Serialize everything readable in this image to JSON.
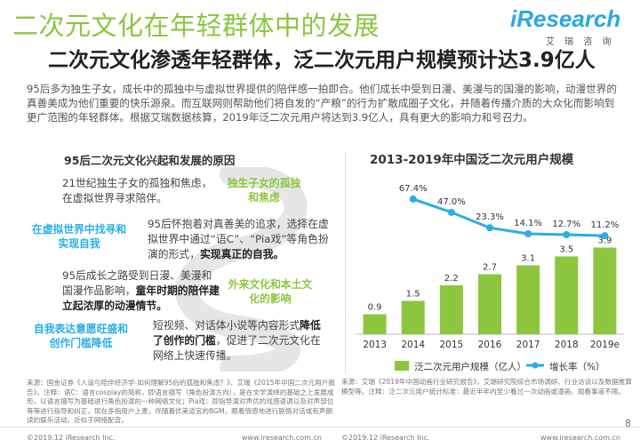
{
  "header": {
    "title": "二次元文化在年轻群体中的发展",
    "logo_main": "iResearch",
    "logo_sub": "艾 瑞 咨 询",
    "subtitle": "二次元文化渗透年轻群体，泛二次元用户规模预计达3.9亿人"
  },
  "intro": "95后多为独生子女，成长中的孤独中与虚拟世界提供的陪伴感一拍即合。他们成长中受到日漫、美漫与的国漫的影响，动漫世界的真善美成为他们重要的快乐源泉。而互联网则帮助他们将自发的“产粮”的行为扩散成圈子文化，并随着传播介质的大众化而影响到更广范围的年轻群体。根据艾瑞数据核算，2019年泛二次元用户将达到3.9亿人，具有更大的影响力和号召力。",
  "left": {
    "title": "95后二次元文化兴起和发展的原因",
    "r1": "21世纪独生子女的孤独和焦虑，在虚拟世界寻求陪伴。",
    "tag1": "独生子女的孤独和焦虑",
    "tag2": "在虚拟世界中找寻和实现自我",
    "r2a": "95后怀抱着对真善美的追求，选择在虚拟世界中通过“语C”、“Pia戏”等角色扮演的形式，",
    "r2b": "实现真正的自我。",
    "r3a": "95后成长之路受到日漫、美漫和国漫作品影响，",
    "r3b": "童年时期的陪伴建立起浓厚的动漫情节。",
    "tag3": "外来文化和本土文化的影响",
    "tag4": "自我表达意愿旺盛和创作门槛降低",
    "r4a": "短视频、对话体小说等内容形式",
    "r4b": "降低了创作的门槛",
    "r4c": "，促进了二次元文化在网络上快速传播。",
    "source": "来源：国金证券《人设与陪伴经济学-如何理解95后的孤独和焦虑？》、艾瑞《2015年中国二次元用户报告》。注释：语C：语言cosplay的简称，即语言描写（角色扮演方向），是在文学演绎的基础之上发展成形，以语言描写为基础进行角色扮演的一种网络文化；Pia戏：即指导演对声优的戏感语调以及对声部位等等进行指导和纠正，现在多指用户上麦，伴随着优美适宜的BGM，跟着情感地进行剧情对话或有声朗读的娱乐活动，近似于网络配音。"
  },
  "chart_data": {
    "type": "bar",
    "title": "2013-2019年中国泛二次元用户规模",
    "categories": [
      "2013",
      "2014",
      "2015",
      "2016",
      "2017",
      "2018",
      "2019e"
    ],
    "series": [
      {
        "name": "泛二次元用户规模（亿人）",
        "values": [
          0.9,
          1.5,
          2.2,
          2.7,
          3.1,
          3.5,
          3.9
        ]
      },
      {
        "name": "增长率（%）",
        "values": [
          null,
          67.4,
          47.0,
          23.3,
          14.1,
          12.7,
          11.2
        ]
      }
    ],
    "bar_labels": [
      "0.9",
      "1.5",
      "2.2",
      "2.7",
      "3.1",
      "3.5",
      "3.9"
    ],
    "line_labels": [
      "",
      "67.4%",
      "47.0%",
      "23.3%",
      "14.1%",
      "12.7%",
      "11.2%"
    ],
    "colors": {
      "bar": "#8cc63f",
      "line": "#29aee6"
    },
    "legend_position": "bottom",
    "source": "来源：艾瑞《2019年中国动画行业研究报告》，艾瑞研究院综合市场调研、行业访谈以及数据推算模型等。注释：泛二次元用户统计标准：最近半年内至少看过一次动画或漫画、观看事道不限。"
  },
  "footer": {
    "left": "©2019.12 iResearch Inc.",
    "mid": "www.iresearch.com.cn",
    "left2": "©2019.12 iResearch Inc.",
    "right": "www.iresearch.com.cn",
    "page": "8"
  }
}
